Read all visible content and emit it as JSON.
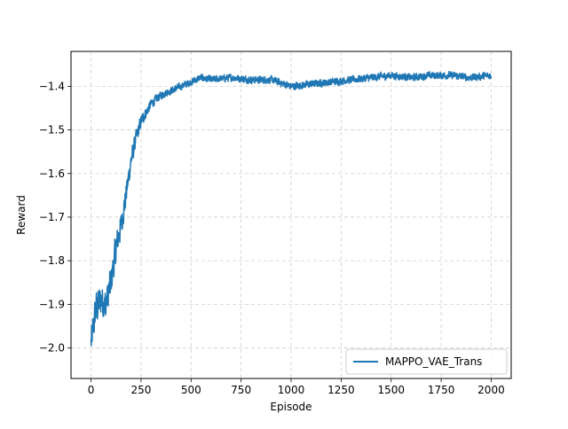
{
  "chart_data": {
    "type": "line",
    "title": "",
    "xlabel": "Episode",
    "ylabel": "Reward",
    "xlim": [
      -100,
      2100
    ],
    "ylim": [
      -2.07,
      -1.32
    ],
    "xticks": [
      0,
      250,
      500,
      750,
      1000,
      1250,
      1500,
      1750,
      2000
    ],
    "yticks": [
      -2.0,
      -1.9,
      -1.8,
      -1.7,
      -1.6,
      -1.5,
      -1.4
    ],
    "ytick_labels": [
      "−2.0",
      "−1.9",
      "−1.8",
      "−1.7",
      "−1.6",
      "−1.5",
      "−1.4"
    ],
    "grid": true,
    "legend_position": "lower-right",
    "series": [
      {
        "name": "MAPPO_VAE_Trans",
        "color": "#1f77b4",
        "x": [
          0,
          25,
          50,
          75,
          100,
          125,
          150,
          175,
          200,
          225,
          250,
          275,
          300,
          350,
          400,
          450,
          500,
          550,
          600,
          700,
          800,
          900,
          1000,
          1100,
          1200,
          1300,
          1400,
          1500,
          1600,
          1700,
          1800,
          1900,
          2000
        ],
        "y": [
          -1.99,
          -1.91,
          -1.89,
          -1.9,
          -1.85,
          -1.77,
          -1.72,
          -1.65,
          -1.57,
          -1.52,
          -1.48,
          -1.46,
          -1.44,
          -1.42,
          -1.41,
          -1.4,
          -1.39,
          -1.38,
          -1.385,
          -1.38,
          -1.385,
          -1.385,
          -1.4,
          -1.395,
          -1.39,
          -1.385,
          -1.38,
          -1.375,
          -1.38,
          -1.375,
          -1.375,
          -1.38,
          -1.375
        ],
        "noise": [
          0.045,
          0.055,
          0.05,
          0.05,
          0.05,
          0.045,
          0.04,
          0.035,
          0.03,
          0.025,
          0.02,
          0.016,
          0.014,
          0.012,
          0.011,
          0.011,
          0.011,
          0.011,
          0.011,
          0.011,
          0.011,
          0.011,
          0.012,
          0.011,
          0.011,
          0.011,
          0.012,
          0.011,
          0.011,
          0.011,
          0.011,
          0.011,
          0.011
        ]
      }
    ]
  }
}
